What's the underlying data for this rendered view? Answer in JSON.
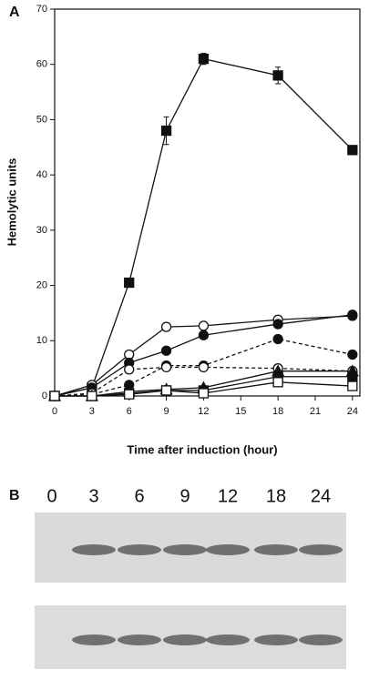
{
  "chart_data": {
    "type": "line",
    "panel_label": "A",
    "x_label": "Time after induction (hour)",
    "y_label": "Hemolytic units",
    "x": [
      0,
      3,
      6,
      9,
      12,
      18,
      24
    ],
    "xlim": [
      0,
      24.6
    ],
    "xticks": [
      0,
      3,
      6,
      9,
      12,
      15,
      18,
      21,
      24
    ],
    "ylim": [
      0,
      70
    ],
    "yticks": [
      0,
      10,
      20,
      30,
      40,
      50,
      60,
      70
    ],
    "series": [
      {
        "color": "#111111",
        "marker": "square",
        "filled": true,
        "dashed": false,
        "values": [
          0,
          1.5,
          20.5,
          48,
          61,
          58,
          44.5
        ],
        "errors": [
          null,
          null,
          null,
          2.5,
          1,
          1.5,
          null
        ]
      },
      {
        "color": "#111111",
        "marker": "circle",
        "filled": false,
        "dashed": false,
        "values": [
          0,
          2,
          7.5,
          12.5,
          12.7,
          13.8,
          14.5
        ]
      },
      {
        "color": "#111111",
        "marker": "circle",
        "filled": true,
        "dashed": false,
        "values": [
          0,
          1.5,
          6,
          8.2,
          11,
          13,
          14.7
        ]
      },
      {
        "color": "#111111",
        "marker": "circle",
        "filled": true,
        "dashed": true,
        "values": [
          0,
          0.3,
          2,
          5.5,
          5.5,
          10.3,
          7.5
        ]
      },
      {
        "color": "#111111",
        "marker": "circle",
        "filled": false,
        "dashed": true,
        "values": [
          0,
          0.5,
          4.8,
          5.2,
          5.2,
          5,
          4.5
        ]
      },
      {
        "color": "#111111",
        "marker": "triangle",
        "filled": true,
        "dashed": false,
        "values": [
          0,
          0,
          0.8,
          1.2,
          1.5,
          4.5,
          4.5
        ]
      },
      {
        "color": "#111111",
        "marker": "square",
        "filled": true,
        "dashed": false,
        "values": [
          0,
          0,
          0.5,
          1,
          1,
          3.5,
          3.5
        ]
      },
      {
        "color": "#111111",
        "marker": "square",
        "filled": false,
        "dashed": false,
        "values": [
          0,
          0,
          0.3,
          1,
          0.5,
          2.5,
          1.8
        ]
      }
    ]
  },
  "blot": {
    "panel_label": "B",
    "lanes": [
      "0",
      "3",
      "6",
      "9",
      "12",
      "18",
      "24"
    ]
  }
}
